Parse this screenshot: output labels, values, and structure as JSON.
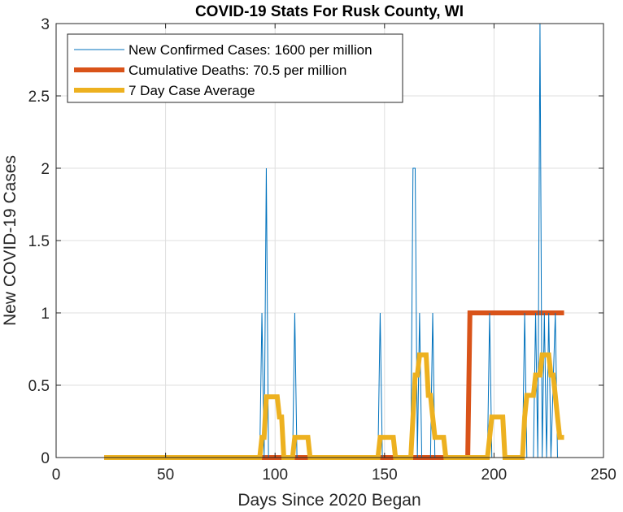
{
  "chart_data": {
    "type": "line",
    "title": "COVID-19 Stats For Rusk County, WI",
    "xlabel": "Days Since 2020 Began",
    "ylabel": "New COVID-19 Cases",
    "xlim": [
      0,
      250
    ],
    "ylim": [
      0,
      3
    ],
    "xticks": [
      0,
      50,
      100,
      150,
      200,
      250
    ],
    "yticks": [
      0,
      0.5,
      1,
      1.5,
      2,
      2.5,
      3
    ],
    "xtick_labels": [
      "0",
      "50",
      "100",
      "150",
      "200",
      "250"
    ],
    "ytick_labels": [
      "0",
      "0.5",
      "1",
      "1.5",
      "2",
      "2.5",
      "3"
    ],
    "grid": true,
    "legend_position": "top-left",
    "series": [
      {
        "name": "New Confirmed Cases: 1600 per million",
        "color": "#0072BD",
        "style": "thin",
        "points": [
          [
            22,
            0
          ],
          [
            93,
            0
          ],
          [
            94,
            1
          ],
          [
            95,
            0
          ],
          [
            96,
            2
          ],
          [
            97,
            0
          ],
          [
            108,
            0
          ],
          [
            109,
            1
          ],
          [
            110,
            0
          ],
          [
            147,
            0
          ],
          [
            148,
            1
          ],
          [
            149,
            0
          ],
          [
            162,
            0
          ],
          [
            163,
            2
          ],
          [
            164,
            2
          ],
          [
            165,
            0
          ],
          [
            166,
            1
          ],
          [
            167,
            0
          ],
          [
            171,
            0
          ],
          [
            172,
            1
          ],
          [
            173,
            0
          ],
          [
            197,
            0
          ],
          [
            198,
            1
          ],
          [
            199,
            0
          ],
          [
            213,
            0
          ],
          [
            214,
            1
          ],
          [
            215,
            0
          ],
          [
            218,
            0
          ],
          [
            219,
            1
          ],
          [
            220,
            0
          ],
          [
            221,
            3
          ],
          [
            222,
            0
          ],
          [
            223,
            1
          ],
          [
            224,
            0
          ],
          [
            225,
            1
          ],
          [
            226,
            0
          ],
          [
            228,
            1
          ],
          [
            229,
            0
          ],
          [
            232,
            0
          ]
        ]
      },
      {
        "name": "Cumulative Deaths: 70.5 per million",
        "color": "#D95319",
        "style": "thick",
        "points": [
          [
            22,
            0
          ],
          [
            188,
            0
          ],
          [
            189,
            1
          ],
          [
            232,
            1
          ]
        ]
      },
      {
        "name": "7 Day Case Average",
        "color": "#EDB120",
        "style": "thick",
        "points": [
          [
            22,
            0
          ],
          [
            93,
            0
          ],
          [
            94,
            0.14
          ],
          [
            95,
            0.14
          ],
          [
            96,
            0.42
          ],
          [
            101,
            0.42
          ],
          [
            102,
            0.28
          ],
          [
            103,
            0.28
          ],
          [
            104,
            0
          ],
          [
            108,
            0
          ],
          [
            109,
            0.14
          ],
          [
            115,
            0.14
          ],
          [
            116,
            0
          ],
          [
            147,
            0
          ],
          [
            148,
            0.14
          ],
          [
            154,
            0.14
          ],
          [
            155,
            0
          ],
          [
            162,
            0
          ],
          [
            163,
            0.28
          ],
          [
            164,
            0.57
          ],
          [
            165,
            0.57
          ],
          [
            166,
            0.71
          ],
          [
            169,
            0.71
          ],
          [
            170,
            0.43
          ],
          [
            171,
            0.43
          ],
          [
            172,
            0.28
          ],
          [
            173,
            0.14
          ],
          [
            177,
            0.14
          ],
          [
            178,
            0
          ],
          [
            197,
            0
          ],
          [
            198,
            0.14
          ],
          [
            199,
            0.28
          ],
          [
            204,
            0.28
          ],
          [
            205,
            0
          ],
          [
            213,
            0
          ],
          [
            214,
            0.28
          ],
          [
            215,
            0.43
          ],
          [
            218,
            0.43
          ],
          [
            219,
            0.57
          ],
          [
            221,
            0.57
          ],
          [
            222,
            0.71
          ],
          [
            225,
            0.71
          ],
          [
            226,
            0.57
          ],
          [
            227,
            0.57
          ],
          [
            228,
            0.43
          ],
          [
            229,
            0.28
          ],
          [
            230,
            0.14
          ],
          [
            232,
            0.14
          ]
        ]
      }
    ]
  }
}
